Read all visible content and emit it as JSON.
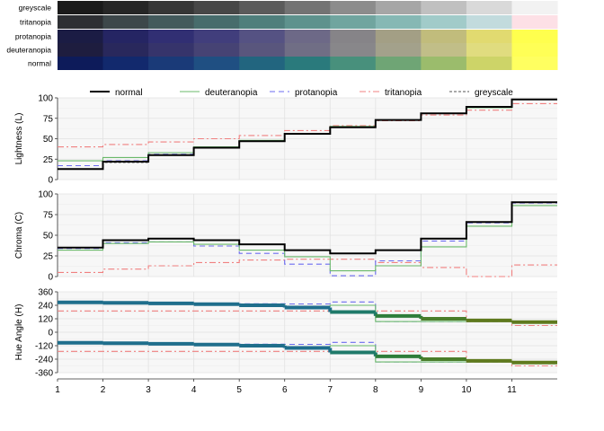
{
  "swatch_rows": [
    {
      "label": "greyscale",
      "colors": [
        "#1a1a1a",
        "#262626",
        "#363636",
        "#474747",
        "#5b5b5b",
        "#737373",
        "#8c8c8c",
        "#a6a6a6",
        "#c0c0c0",
        "#d9d9d9",
        "#f2f2f2"
      ]
    },
    {
      "label": "tritanopia",
      "colors": [
        "#2d2f33",
        "#3d474a",
        "#435a5c",
        "#476c6c",
        "#4f7f7c",
        "#5e928d",
        "#70a59f",
        "#86b8b4",
        "#a1cbc9",
        "#c2dbdd",
        "#fde0e6"
      ]
    },
    {
      "label": "protanopia",
      "colors": [
        "#1b1c44",
        "#252563",
        "#312f73",
        "#413e7c",
        "#555283",
        "#6d6987",
        "#868488",
        "#a39f85",
        "#c1bc7c",
        "#e1da70",
        "#ffff4e"
      ]
    },
    {
      "label": "deuteranopia",
      "colors": [
        "#1e1d3f",
        "#29285c",
        "#36346b",
        "#464374",
        "#59567d",
        "#706e85",
        "#88878a",
        "#a3a18b",
        "#c1be88",
        "#e0dc7f",
        "#ffff56"
      ]
    },
    {
      "label": "normal",
      "colors": [
        "#0d1b5a",
        "#12296d",
        "#1a3a78",
        "#1f4f82",
        "#22657f",
        "#2a7a7c",
        "#48907c",
        "#6fa575",
        "#9bbc6c",
        "#cdd468",
        "#ffff60"
      ]
    }
  ],
  "chart_data": [
    {
      "type": "line",
      "step": true,
      "ylabel": "Lightness (L)",
      "ylim": [
        0,
        100
      ],
      "yticks": [
        "0",
        "25",
        "50",
        "75",
        "100"
      ],
      "xlim": [
        1,
        12
      ],
      "xticks": [
        "1",
        "2",
        "3",
        "4",
        "5",
        "6",
        "7",
        "8",
        "9",
        "10",
        "11"
      ],
      "grid": true,
      "legend": "top",
      "series": [
        {
          "name": "normal",
          "color": "#000000",
          "values": [
            13,
            22,
            30,
            39,
            47,
            56,
            64,
            73,
            81,
            89,
            98
          ]
        },
        {
          "name": "deuteranopia",
          "color": "#6ab96a",
          "values": [
            23,
            27,
            33,
            40,
            48,
            56,
            65,
            73,
            81,
            88,
            98
          ]
        },
        {
          "name": "protanopia",
          "color": "#6b6bf0",
          "values": [
            17,
            23,
            31,
            39,
            47,
            56,
            64,
            73,
            81,
            89,
            98
          ]
        },
        {
          "name": "tritanopia",
          "color": "#f08080",
          "values": [
            40,
            43,
            46,
            50,
            54,
            60,
            66,
            72,
            79,
            85,
            93
          ]
        },
        {
          "name": "greyscale",
          "color": "#555555",
          "values": [
            13,
            21,
            30,
            39,
            47,
            56,
            64,
            73,
            81,
            89,
            98
          ]
        }
      ]
    },
    {
      "type": "line",
      "step": true,
      "ylabel": "Chroma (C)",
      "ylim": [
        0,
        100
      ],
      "yticks": [
        "0",
        "25",
        "50",
        "75",
        "100"
      ],
      "xlim": [
        1,
        12
      ],
      "grid": true,
      "series": [
        {
          "name": "normal",
          "color": "#000000",
          "values": [
            35,
            44,
            46,
            44,
            39,
            32,
            28,
            32,
            46,
            66,
            90
          ]
        },
        {
          "name": "deuteranopia",
          "color": "#6ab96a",
          "values": [
            32,
            40,
            42,
            39,
            32,
            24,
            7,
            13,
            36,
            61,
            86
          ]
        },
        {
          "name": "protanopia",
          "color": "#6b6bf0",
          "values": [
            34,
            41,
            42,
            37,
            28,
            15,
            1,
            19,
            43,
            65,
            89
          ]
        },
        {
          "name": "tritanopia",
          "color": "#f08080",
          "values": [
            5,
            9,
            13,
            17,
            20,
            21,
            21,
            17,
            11,
            0,
            14
          ]
        },
        {
          "name": "greyscale",
          "color": "#555555",
          "values": [
            0,
            0,
            0,
            0,
            0,
            0,
            0,
            0,
            0,
            0,
            0
          ]
        }
      ]
    },
    {
      "type": "line",
      "step": true,
      "ylabel": "Hue Angle (H)",
      "ylim": [
        -360,
        360
      ],
      "yticks": [
        "-360",
        "-240",
        "-120",
        "0",
        "120",
        "240",
        "360"
      ],
      "xlim": [
        1,
        12
      ],
      "grid": true,
      "series": [
        {
          "name": "normal",
          "color": "#000000",
          "values": [
            266,
            262,
            257,
            250,
            240,
            220,
            180,
            145,
            120,
            105,
            90
          ]
        },
        {
          "name": "deuteranopia",
          "color": "#6ab96a",
          "values": [
            267,
            264,
            260,
            254,
            247,
            230,
            240,
            95,
            95,
            95,
            90
          ]
        },
        {
          "name": "protanopia",
          "color": "#6b6bf0",
          "values": [
            268,
            265,
            261,
            256,
            254,
            252,
            270,
            95,
            95,
            95,
            90
          ]
        },
        {
          "name": "tritanopia",
          "color": "#f08080",
          "values": [
            190,
            190,
            190,
            190,
            190,
            190,
            190,
            190,
            190,
            95,
            60
          ]
        },
        {
          "name": "greyscale",
          "color": "#555555",
          "values": [
            0,
            0,
            0,
            0,
            0,
            0,
            0,
            0,
            0,
            0,
            0
          ]
        }
      ]
    }
  ]
}
